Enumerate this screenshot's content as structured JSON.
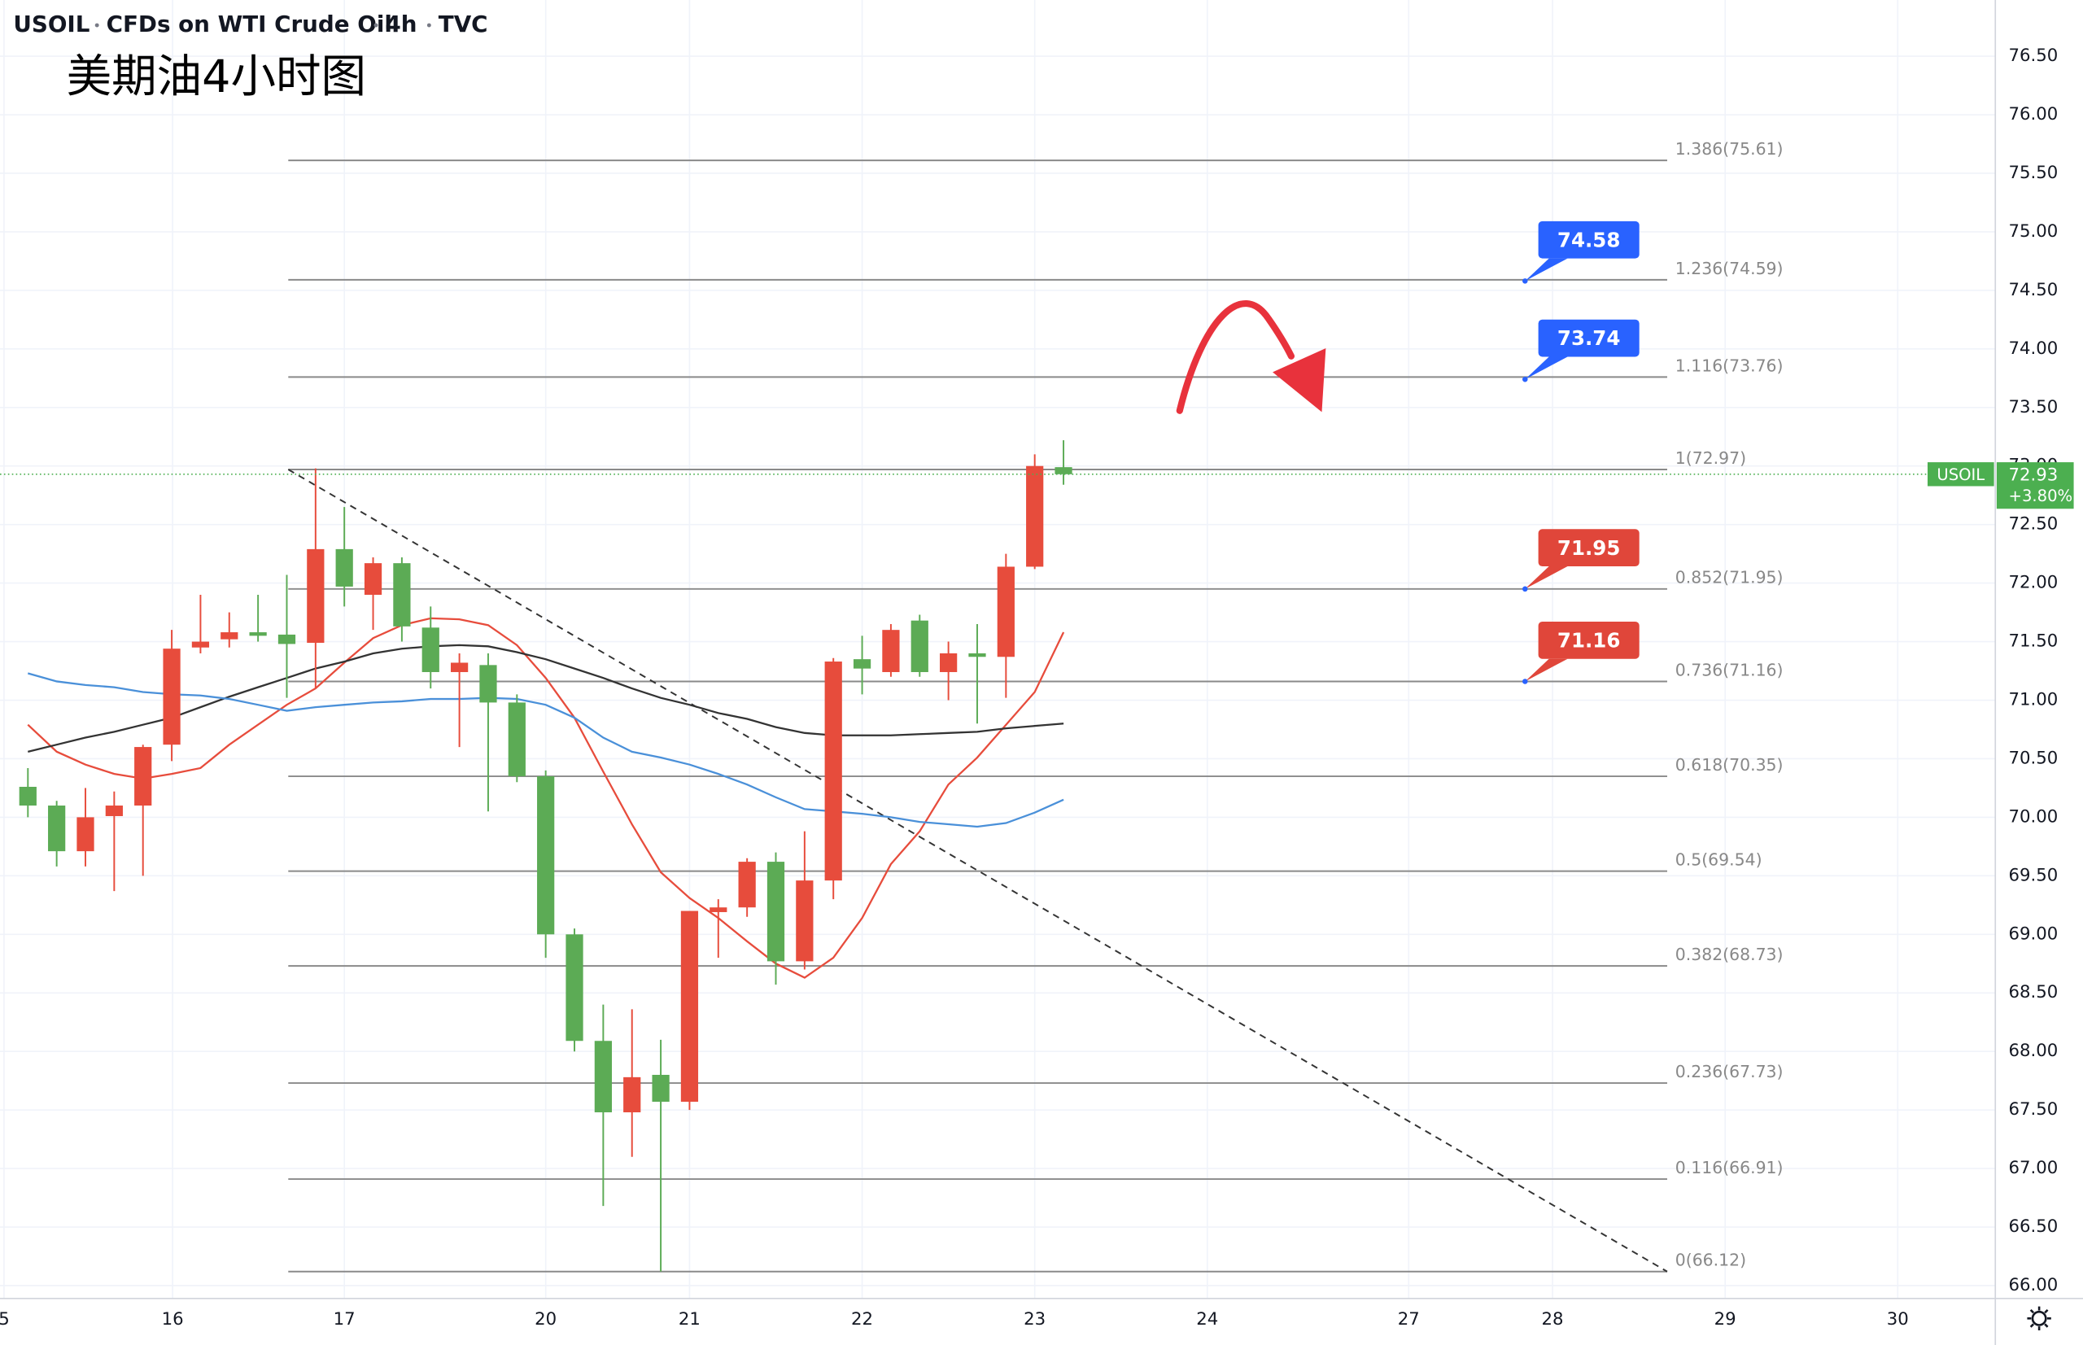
{
  "chart_data": {
    "type": "candlestick",
    "header": {
      "symbol": "USOIL",
      "description": "CFDs on WTI Crude Oil",
      "interval": "4h",
      "exchange": "TVC"
    },
    "subtitle": "美期油4小时图",
    "up_color": "#e74c3c",
    "down_color": "#5cab55",
    "candles": [
      {
        "open": 70.26,
        "high": 70.42,
        "low": 70.0,
        "close": 70.1
      },
      {
        "open": 70.1,
        "high": 70.14,
        "low": 69.58,
        "close": 69.71
      },
      {
        "open": 69.71,
        "high": 70.25,
        "low": 69.58,
        "close": 70.0
      },
      {
        "open": 70.01,
        "high": 70.22,
        "low": 69.37,
        "close": 70.1
      },
      {
        "open": 70.1,
        "high": 70.62,
        "low": 69.5,
        "close": 70.6
      },
      {
        "open": 70.62,
        "high": 71.6,
        "low": 70.48,
        "close": 71.44
      },
      {
        "open": 71.45,
        "high": 71.9,
        "low": 71.4,
        "close": 71.5
      },
      {
        "open": 71.52,
        "high": 71.75,
        "low": 71.45,
        "close": 71.58
      },
      {
        "open": 71.58,
        "high": 71.9,
        "low": 71.5,
        "close": 71.55
      },
      {
        "open": 71.56,
        "high": 72.07,
        "low": 71.02,
        "close": 71.48
      },
      {
        "open": 71.49,
        "high": 72.98,
        "low": 71.1,
        "close": 72.29
      },
      {
        "open": 72.29,
        "high": 72.65,
        "low": 71.8,
        "close": 71.97
      },
      {
        "open": 71.9,
        "high": 72.22,
        "low": 71.6,
        "close": 72.17
      },
      {
        "open": 72.17,
        "high": 72.22,
        "low": 71.5,
        "close": 71.63
      },
      {
        "open": 71.62,
        "high": 71.8,
        "low": 71.1,
        "close": 71.24
      },
      {
        "open": 71.24,
        "high": 71.4,
        "low": 70.6,
        "close": 71.32
      },
      {
        "open": 71.3,
        "high": 71.4,
        "low": 70.05,
        "close": 70.98
      },
      {
        "open": 70.98,
        "high": 71.05,
        "low": 70.3,
        "close": 70.35
      },
      {
        "open": 70.35,
        "high": 70.4,
        "low": 68.8,
        "close": 69.0
      },
      {
        "open": 69.0,
        "high": 69.05,
        "low": 68.0,
        "close": 68.09
      },
      {
        "open": 68.09,
        "high": 68.4,
        "low": 66.68,
        "close": 67.48
      },
      {
        "open": 67.48,
        "high": 68.36,
        "low": 67.1,
        "close": 67.78
      },
      {
        "open": 67.8,
        "high": 68.1,
        "low": 66.12,
        "close": 67.57
      },
      {
        "open": 67.57,
        "high": 69.2,
        "low": 67.5,
        "close": 69.2
      },
      {
        "open": 69.19,
        "high": 69.3,
        "low": 68.8,
        "close": 69.23
      },
      {
        "open": 69.23,
        "high": 69.65,
        "low": 69.15,
        "close": 69.62
      },
      {
        "open": 69.62,
        "high": 69.7,
        "low": 68.57,
        "close": 68.77
      },
      {
        "open": 68.77,
        "high": 69.88,
        "low": 68.7,
        "close": 69.46
      },
      {
        "open": 69.46,
        "high": 71.36,
        "low": 69.3,
        "close": 71.33
      },
      {
        "open": 71.35,
        "high": 71.55,
        "low": 71.05,
        "close": 71.27
      },
      {
        "open": 71.24,
        "high": 71.65,
        "low": 71.2,
        "close": 71.6
      },
      {
        "open": 71.68,
        "high": 71.73,
        "low": 71.2,
        "close": 71.24
      },
      {
        "open": 71.24,
        "high": 71.5,
        "low": 71.0,
        "close": 71.4
      },
      {
        "open": 71.4,
        "high": 71.65,
        "low": 70.8,
        "close": 71.37
      },
      {
        "open": 71.37,
        "high": 72.25,
        "low": 71.02,
        "close": 72.14
      },
      {
        "open": 72.14,
        "high": 73.1,
        "low": 72.12,
        "close": 73.0
      },
      {
        "open": 72.99,
        "high": 73.22,
        "low": 72.84,
        "close": 72.93
      }
    ],
    "moving_averages": [
      {
        "color": "#e74c3c",
        "values": [
          70.79,
          70.56,
          70.45,
          70.37,
          70.33,
          70.37,
          70.42,
          70.62,
          70.79,
          70.96,
          71.1,
          71.32,
          71.53,
          71.64,
          71.7,
          71.69,
          71.64,
          71.47,
          71.19,
          70.85,
          70.39,
          69.94,
          69.53,
          69.31,
          69.14,
          68.94,
          68.75,
          68.63,
          68.8,
          69.14,
          69.6,
          69.88,
          70.28,
          70.51,
          70.79,
          71.07,
          71.58
        ]
      },
      {
        "color": "#333333",
        "values": [
          70.56,
          70.62,
          70.68,
          70.73,
          70.79,
          70.85,
          70.94,
          71.03,
          71.11,
          71.19,
          71.27,
          71.33,
          71.4,
          71.44,
          71.46,
          71.47,
          71.46,
          71.41,
          71.35,
          71.27,
          71.19,
          71.1,
          71.02,
          70.96,
          70.89,
          70.84,
          70.77,
          70.72,
          70.7,
          70.7,
          70.7,
          70.71,
          70.72,
          70.73,
          70.76,
          70.78,
          70.8
        ]
      },
      {
        "color": "#4a90d9",
        "values": [
          71.23,
          71.16,
          71.13,
          71.11,
          71.07,
          71.05,
          71.04,
          71.01,
          70.96,
          70.91,
          70.94,
          70.96,
          70.98,
          70.99,
          71.01,
          71.01,
          71.02,
          71.01,
          70.96,
          70.85,
          70.68,
          70.56,
          70.51,
          70.45,
          70.37,
          70.28,
          70.17,
          70.07,
          70.05,
          70.03,
          70.0,
          69.96,
          69.94,
          69.92,
          69.95,
          70.04,
          70.15
        ]
      }
    ],
    "fib_levels": [
      {
        "value": 75.61,
        "label": "1.386(75.61)"
      },
      {
        "value": 74.59,
        "label": "1.236(74.59)"
      },
      {
        "value": 73.76,
        "label": "1.116(73.76)"
      },
      {
        "value": 72.97,
        "label": "1(72.97)"
      },
      {
        "value": 71.95,
        "label": "0.852(71.95)"
      },
      {
        "value": 71.16,
        "label": "0.736(71.16)"
      },
      {
        "value": 70.35,
        "label": "0.618(70.35)"
      },
      {
        "value": 69.54,
        "label": "0.5(69.54)"
      },
      {
        "value": 68.73,
        "label": "0.382(68.73)"
      },
      {
        "value": 67.73,
        "label": "0.236(67.73)"
      },
      {
        "value": 66.91,
        "label": "0.116(66.91)"
      },
      {
        "value": 66.12,
        "label": "0(66.12)"
      }
    ],
    "callouts": [
      {
        "value": 74.58,
        "color": "#2962ff"
      },
      {
        "value": 73.74,
        "color": "#2962ff"
      },
      {
        "value": 71.95,
        "color": "#e0463a"
      },
      {
        "value": 71.16,
        "color": "#e0463a"
      }
    ],
    "trendline": {
      "from": 72.97,
      "to": 66.12
    },
    "last_price": {
      "value": 72.93,
      "change": "+3.80%",
      "color": "#4caf50"
    },
    "xlim": [
      -0.97,
      68.3
    ],
    "xticks": [
      {
        "value": -0.83,
        "label": "5"
      },
      {
        "value": 5.03,
        "label": "16"
      },
      {
        "value": 11,
        "label": "17"
      },
      {
        "value": 18,
        "label": "20"
      },
      {
        "value": 23,
        "label": "21"
      },
      {
        "value": 29,
        "label": "22"
      },
      {
        "value": 35,
        "label": "23"
      },
      {
        "value": 41,
        "label": "24"
      },
      {
        "value": 48,
        "label": "27"
      },
      {
        "value": 53,
        "label": "28"
      },
      {
        "value": 59,
        "label": "29"
      },
      {
        "value": 65,
        "label": "30"
      }
    ],
    "ylim": [
      65.89,
      76.98
    ],
    "yticks": [
      {
        "value": 66,
        "label": "66.00"
      },
      {
        "value": 66.5,
        "label": "66.50"
      },
      {
        "value": 67,
        "label": "67.00"
      },
      {
        "value": 67.5,
        "label": "67.50"
      },
      {
        "value": 68,
        "label": "68.00"
      },
      {
        "value": 68.5,
        "label": "68.50"
      },
      {
        "value": 69,
        "label": "69.00"
      },
      {
        "value": 69.5,
        "label": "69.50"
      },
      {
        "value": 70,
        "label": "70.00"
      },
      {
        "value": 70.5,
        "label": "70.50"
      },
      {
        "value": 71,
        "label": "71.00"
      },
      {
        "value": 71.5,
        "label": "71.50"
      },
      {
        "value": 72,
        "label": "72.00"
      },
      {
        "value": 72.5,
        "label": "72.50"
      },
      {
        "value": 73,
        "label": "73.00"
      },
      {
        "value": 73.5,
        "label": "73.50"
      },
      {
        "value": 74,
        "label": "74.00"
      },
      {
        "value": 74.5,
        "label": "74.50"
      },
      {
        "value": 75,
        "label": "75.00"
      },
      {
        "value": 75.5,
        "label": "75.50"
      },
      {
        "value": 76,
        "label": "76.00"
      },
      {
        "value": 76.5,
        "label": "76.50"
      }
    ],
    "grid": true
  }
}
